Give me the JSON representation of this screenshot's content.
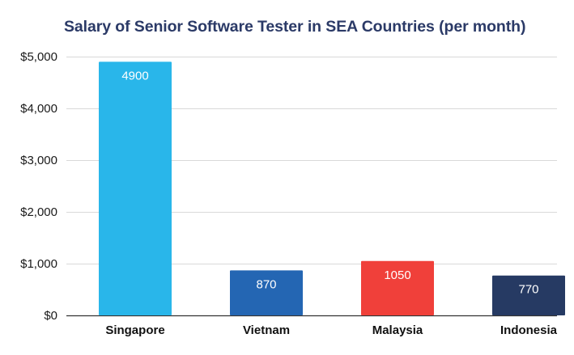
{
  "chart_data": {
    "type": "bar",
    "title": "Salary of Senior Software Tester in SEA Countries (per month)",
    "xlabel": "",
    "ylabel": "",
    "categories": [
      "Singapore",
      "Vietnam",
      "Malaysia",
      "Indonesia"
    ],
    "values": [
      4900,
      870,
      1050,
      770
    ],
    "data_labels": [
      "4900",
      "870",
      "1050",
      "770"
    ],
    "bar_colors": [
      "#29b6ea",
      "#2466b3",
      "#f0403a",
      "#263a63"
    ],
    "ylim": [
      0,
      5000
    ],
    "y_ticks": [
      0,
      1000,
      2000,
      3000,
      4000,
      5000
    ],
    "y_tick_labels": [
      "$0",
      "$1,000",
      "$2,000",
      "$3,000",
      "$4,000",
      "$5,000"
    ],
    "grid": true,
    "legend": "none"
  }
}
